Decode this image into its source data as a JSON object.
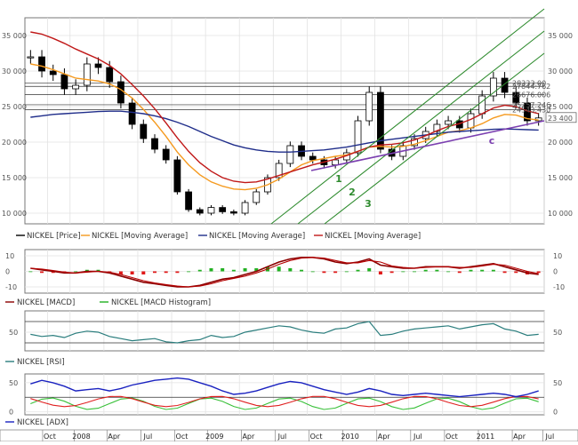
{
  "colors": {
    "price": "#000000",
    "ma_fast": "#f59a1f",
    "ma_slow": "#1f2d8a",
    "ma_mid": "#c01818",
    "channel": "#2e8b2e",
    "trendline": "#7b3fb0",
    "macd": "#8b0000",
    "signal": "#b50000",
    "hist_pos": "#22b022",
    "hist_neg": "#e01818",
    "rsi": "#2a7d7d",
    "adx": "#1a22c0",
    "plus_di": "#38c038",
    "minus_di": "#e02020"
  },
  "legends": {
    "price": [
      "NICKEL [Price]",
      "NICKEL [Moving Average]",
      "NICKEL [Moving Average]",
      "NICKEL [Moving Average]"
    ],
    "macd": [
      "NICKEL [MACD]",
      "NICKEL [MACD Histogram]"
    ],
    "rsi": [
      "NICKEL [RSI]"
    ],
    "adx": [
      "NICKEL [ADX]"
    ]
  },
  "x_axis": {
    "labels": [
      "Oct",
      "2008",
      "Apr",
      "Jul",
      "Oct",
      "2009",
      "Apr",
      "Jul",
      "Oct",
      "2010",
      "Apr",
      "Jul",
      "Oct",
      "2011",
      "Apr",
      "Jul"
    ],
    "year_labels": [
      "2008",
      "2009",
      "2010",
      "2011"
    ]
  },
  "price_panel": {
    "left_ticks": [
      "35 000",
      "30 000",
      "25 000",
      "20 000",
      "15 000",
      "10 000"
    ],
    "right_ticks": [
      "35 000",
      "30 000",
      "25 000",
      "20 000",
      "15 000",
      "10 000"
    ],
    "level_labels": [
      "28333.00",
      "27844.762",
      "26676.006",
      "25257.246",
      "24543.430"
    ],
    "last_price_label": "23 400",
    "wave_labels": [
      "1",
      "2",
      "3",
      "c"
    ]
  },
  "macd_panel": {
    "ticks": [
      "10",
      "0",
      "-10"
    ],
    "right_ticks": [
      "10",
      "0",
      "-10"
    ]
  },
  "rsi_panel": {
    "ticks": [
      "50"
    ],
    "right_ticks": [
      "50"
    ]
  },
  "adx_panel": {
    "ticks": [
      "50",
      "0"
    ],
    "right_ticks": [
      "50",
      "0"
    ]
  },
  "chart_data": {
    "type": "line",
    "title": "",
    "x": [
      "2007-09",
      "2007-10",
      "2007-11",
      "2007-12",
      "2008-01",
      "2008-02",
      "2008-03",
      "2008-04",
      "2008-05",
      "2008-06",
      "2008-07",
      "2008-08",
      "2008-09",
      "2008-10",
      "2008-11",
      "2008-12",
      "2009-01",
      "2009-02",
      "2009-03",
      "2009-04",
      "2009-05",
      "2009-06",
      "2009-07",
      "2009-08",
      "2009-09",
      "2009-10",
      "2009-11",
      "2009-12",
      "2010-01",
      "2010-02",
      "2010-03",
      "2010-04",
      "2010-05",
      "2010-06",
      "2010-07",
      "2010-08",
      "2010-09",
      "2010-10",
      "2010-11",
      "2010-12",
      "2011-01",
      "2011-02",
      "2011-03",
      "2011-04",
      "2011-05",
      "2011-06"
    ],
    "y_price_range": [
      8500,
      37500
    ],
    "series": [
      {
        "name": "NICKEL [Price]",
        "values": [
          32000,
          30000,
          29500,
          27500,
          28000,
          31000,
          30500,
          28500,
          25500,
          22500,
          20500,
          19000,
          17500,
          13000,
          10500,
          10000,
          10800,
          10200,
          10000,
          11500,
          13000,
          15000,
          17000,
          19500,
          18000,
          17500,
          16800,
          17500,
          18500,
          23000,
          27000,
          19000,
          18000,
          19500,
          20500,
          21500,
          22500,
          23000,
          22000,
          24000,
          26500,
          29000,
          27000,
          25500,
          23000,
          23400
        ]
      },
      {
        "name": "NICKEL [Moving Average]",
        "values": [
          31000,
          30700,
          30200,
          29600,
          29000,
          28800,
          28600,
          28200,
          27400,
          26200,
          24600,
          22800,
          20800,
          18600,
          16800,
          15400,
          14400,
          13800,
          13400,
          13300,
          13500,
          14000,
          14800,
          15800,
          16800,
          17400,
          17700,
          18000,
          18200,
          18700,
          19300,
          19400,
          19300,
          19400,
          19700,
          20200,
          20800,
          21400,
          21600,
          22000,
          22600,
          23400,
          23900,
          23800,
          23300,
          23100
        ]
      },
      {
        "name": "NICKEL [Moving Average]",
        "values": [
          23500,
          23700,
          23900,
          24000,
          24100,
          24200,
          24300,
          24350,
          24350,
          24200,
          24000,
          23700,
          23300,
          22800,
          22200,
          21500,
          20800,
          20200,
          19600,
          19200,
          18900,
          18700,
          18600,
          18600,
          18700,
          18800,
          18900,
          19100,
          19300,
          19600,
          19900,
          20200,
          20400,
          20600,
          20800,
          21000,
          21200,
          21400,
          21500,
          21600,
          21700,
          21800,
          21850,
          21800,
          21750,
          21700
        ]
      },
      {
        "name": "NICKEL [Moving Average]",
        "values": [
          35500,
          35200,
          34600,
          33900,
          33100,
          32400,
          31700,
          30800,
          29600,
          28100,
          26500,
          24700,
          22700,
          20600,
          18700,
          17100,
          15900,
          15000,
          14500,
          14300,
          14400,
          14800,
          15300,
          15800,
          16300,
          16800,
          17200,
          17600,
          18100,
          18700,
          19300,
          19600,
          19700,
          19900,
          20300,
          20900,
          21600,
          22200,
          22600,
          23200,
          24000,
          24800,
          25200,
          25000,
          24400,
          24000
        ]
      },
      {
        "name": "NICKEL [MACD]",
        "values": [
          2,
          1,
          0,
          -1,
          -1,
          0,
          0,
          -1,
          -3,
          -5,
          -7,
          -8,
          -9,
          -10,
          -10,
          -9,
          -7,
          -5,
          -4,
          -2,
          0,
          3,
          6,
          8,
          9,
          9,
          8,
          6,
          5,
          6,
          8,
          4,
          3,
          2,
          2,
          3,
          3,
          3,
          2,
          3,
          4,
          5,
          3,
          1,
          -1,
          -2
        ]
      },
      {
        "name": "NICKEL [MACD Histogram]",
        "values": [
          0,
          -1,
          -1,
          -1,
          0,
          1,
          1,
          -1,
          -2,
          -2,
          -2,
          -1,
          -1,
          -1,
          0,
          1,
          2,
          2,
          1,
          2,
          2,
          3,
          3,
          2,
          1,
          0,
          -1,
          -1,
          0,
          1,
          2,
          -2,
          -1,
          0,
          0,
          1,
          1,
          0,
          -1,
          1,
          1,
          1,
          -1,
          -1,
          -2,
          -1
        ]
      },
      {
        "name": "NICKEL [RSI]",
        "values": [
          46,
          42,
          44,
          40,
          48,
          52,
          50,
          42,
          38,
          34,
          36,
          38,
          32,
          30,
          34,
          36,
          44,
          40,
          42,
          50,
          54,
          58,
          62,
          60,
          54,
          50,
          48,
          56,
          58,
          66,
          70,
          44,
          46,
          52,
          56,
          58,
          60,
          62,
          56,
          60,
          64,
          66,
          56,
          52,
          44,
          46
        ]
      },
      {
        "name": "NICKEL [ADX]",
        "values": [
          48,
          54,
          50,
          44,
          36,
          38,
          40,
          36,
          40,
          46,
          50,
          54,
          56,
          58,
          56,
          50,
          44,
          36,
          30,
          32,
          36,
          42,
          48,
          52,
          50,
          44,
          38,
          34,
          30,
          34,
          40,
          36,
          30,
          28,
          30,
          32,
          30,
          28,
          26,
          28,
          30,
          32,
          30,
          26,
          30,
          36
        ]
      }
    ]
  }
}
